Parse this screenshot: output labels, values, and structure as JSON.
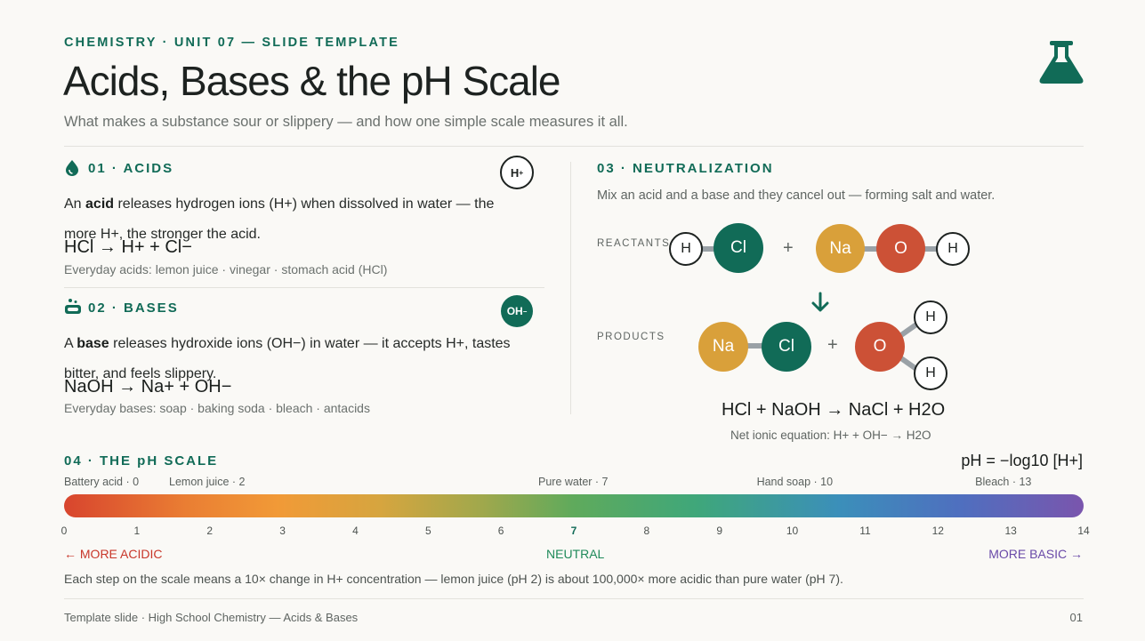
{
  "header": {
    "eyebrow": "CHEMISTRY · UNIT 07 — SLIDE TEMPLATE",
    "title": "Acids, Bases & the pH Scale",
    "subtitle": "What makes a substance sour or slippery — and how one simple scale measures it all."
  },
  "acids": {
    "heading": "01 · ACIDS",
    "badge": "H+",
    "text_lead": "An ",
    "text_term": "acid",
    "text_rest": " releases hydrogen ions (H+) when dissolved in water — the more H+, the stronger the acid.",
    "equation": "HCl → H+ + Cl−",
    "examples": "Everyday acids: lemon juice · vinegar · stomach acid (HCl)"
  },
  "bases": {
    "heading": "02 · BASES",
    "badge": "OH−",
    "text_lead": "A ",
    "text_term": "base",
    "text_rest": " releases hydroxide ions (OH−) in water — it accepts H+, tastes bitter, and feels slippery.",
    "equation": "NaOH → Na+ + OH−",
    "examples": "Everyday bases: soap · baking soda · bleach · antacids"
  },
  "neutralization": {
    "heading": "03 · NEUTRALIZATION",
    "description": "Mix an acid and a base and they cancel out — forming salt and water.",
    "reactants_label": "REACTANTS",
    "products_label": "PRODUCTS",
    "plus": "+",
    "atoms": {
      "h": "H",
      "cl": "Cl",
      "na": "Na",
      "o": "O"
    },
    "equation": "HCl + NaOH → NaCl + H2O",
    "net_ionic": "Net ionic equation: H+ + OH− → H2O",
    "colors": {
      "teal": "#116b57",
      "gold": "#d9a03a",
      "red": "#cc5136"
    }
  },
  "ph_scale": {
    "heading": "04 · THE pH SCALE",
    "formula": "pH = −log10 [H+]",
    "markers": [
      {
        "label": "Battery acid · 0",
        "ph": 0
      },
      {
        "label": "Lemon juice · 2",
        "ph": 2
      },
      {
        "label": "Pure water · 7",
        "ph": 7
      },
      {
        "label": "Hand soap · 10",
        "ph": 10
      },
      {
        "label": "Bleach · 13",
        "ph": 13
      }
    ],
    "ticks": [
      "0",
      "1",
      "2",
      "3",
      "4",
      "5",
      "6",
      "7",
      "8",
      "9",
      "10",
      "11",
      "12",
      "13",
      "14"
    ],
    "more_acidic": "← MORE ACIDIC",
    "neutral": "NEUTRAL",
    "more_basic": "MORE BASIC →",
    "colors": {
      "acidic": "#c8372a",
      "neutral": "#1f8a5a",
      "basic": "#6a4aa8"
    },
    "footnote": "Each step on the scale means a 10× change in H+ concentration — lemon juice (pH 2) is about 100,000× more acidic than pure water (pH 7)."
  },
  "footer": {
    "left": "Template slide · High School Chemistry — Acids & Bases",
    "page": "01"
  },
  "icons": [
    "flask-icon",
    "drop-icon",
    "soap-icon"
  ]
}
